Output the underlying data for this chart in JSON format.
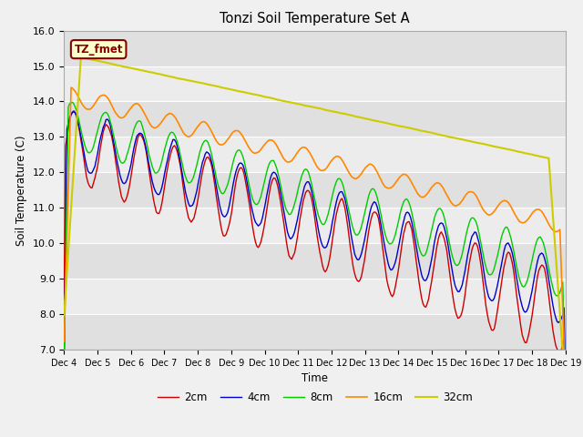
{
  "title": "Tonzi Soil Temperature Set A",
  "ylabel": "Soil Temperature (C)",
  "xlabel": "Time",
  "ylim": [
    7.0,
    16.0
  ],
  "yticks": [
    7.0,
    8.0,
    9.0,
    10.0,
    11.0,
    12.0,
    13.0,
    14.0,
    15.0,
    16.0
  ],
  "xtick_labels": [
    "Dec 4",
    "Dec 5",
    "Dec 6",
    "Dec 7",
    "Dec 8",
    "Dec 9",
    "Dec 10",
    "Dec 11",
    "Dec 12",
    "Dec 13",
    "Dec 14",
    "Dec 15",
    "Dec 16",
    "Dec 17",
    "Dec 18",
    "Dec 19"
  ],
  "legend_label": "TZ_fmet",
  "series_labels": [
    "2cm",
    "4cm",
    "8cm",
    "16cm",
    "32cm"
  ],
  "series_colors": [
    "#cc0000",
    "#0000cc",
    "#00cc00",
    "#ff8800",
    "#cccc00"
  ],
  "figsize": [
    6.4,
    4.8
  ],
  "dpi": 100
}
